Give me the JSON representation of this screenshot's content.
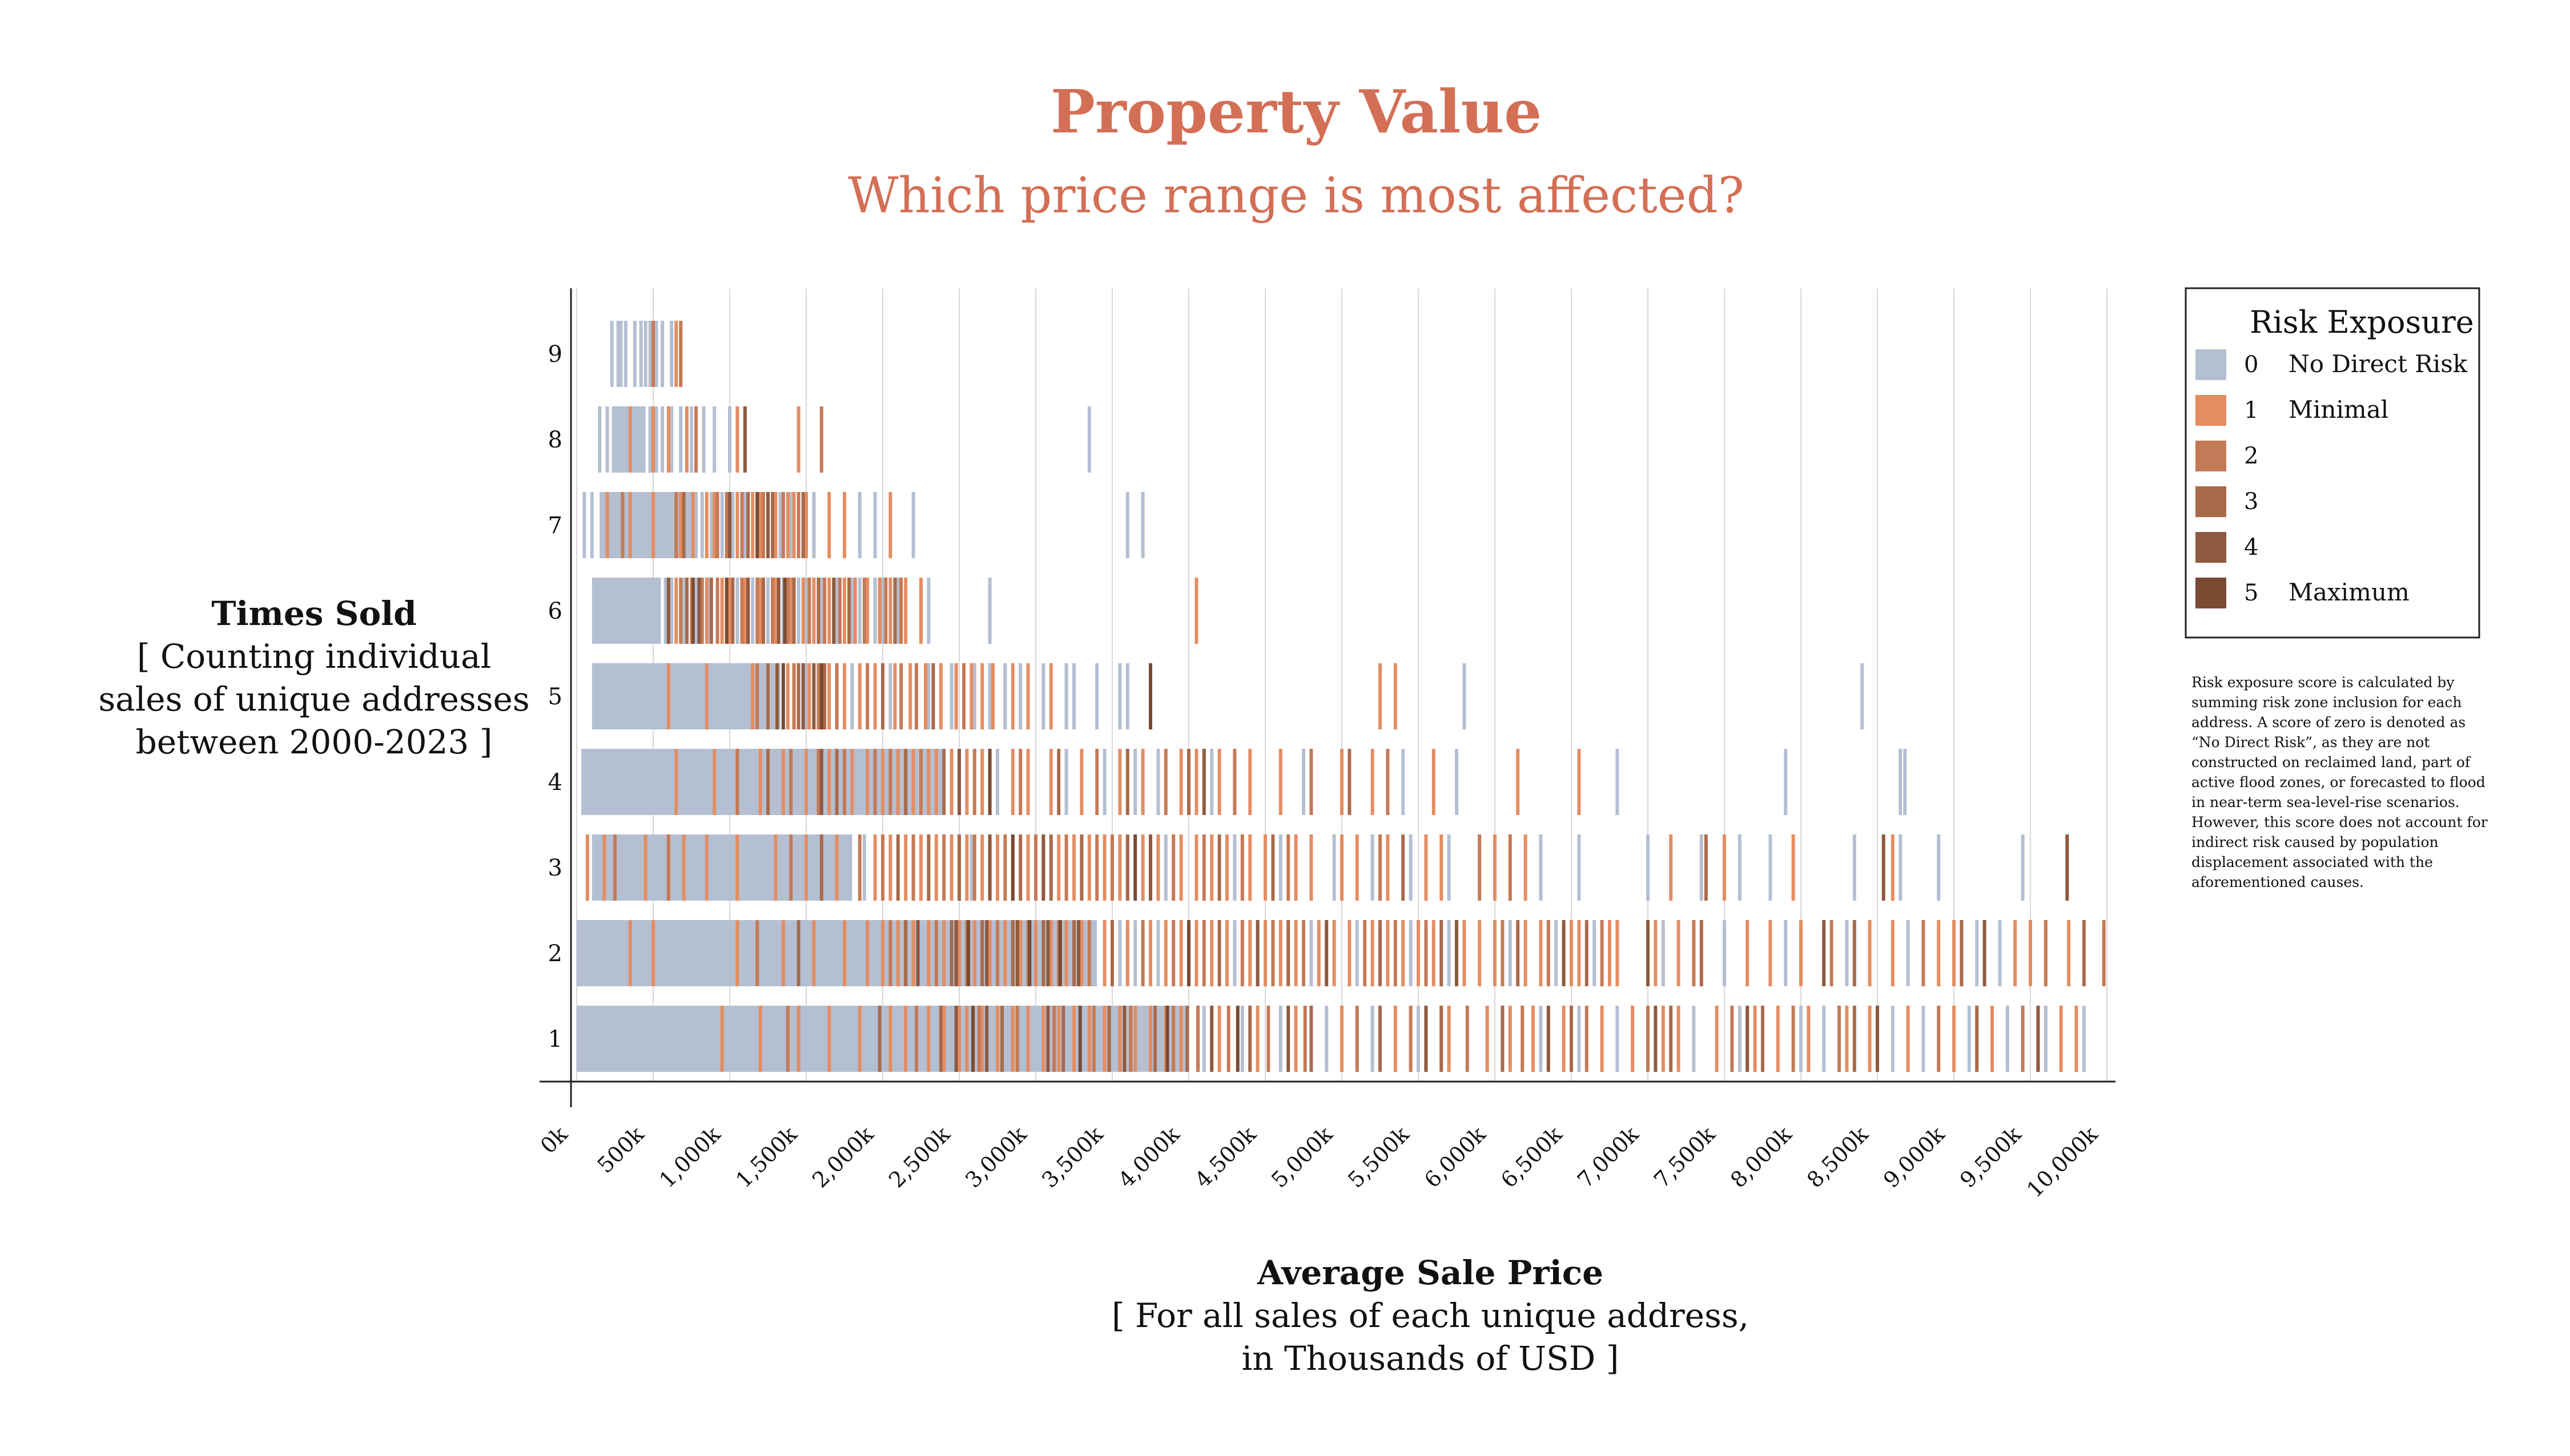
{
  "chart_data": {
    "type": "strip",
    "title": "Property Value",
    "subtitle": "Which price range is most affected?",
    "xlabel": "Average Sale Price",
    "xlabel_sub": [
      "[ For all sales of each unique address,",
      "in Thousands of USD ]"
    ],
    "ylabel": "Times Sold",
    "ylabel_sub": [
      "[ Counting individual",
      "sales of unique addresses",
      "between 2000-2023 ]"
    ],
    "xlim": [
      0,
      10000
    ],
    "x_ticks": [
      {
        "value": 0,
        "label": "0k"
      },
      {
        "value": 500,
        "label": "500k"
      },
      {
        "value": 1000,
        "label": "1,000k"
      },
      {
        "value": 1500,
        "label": "1,500k"
      },
      {
        "value": 2000,
        "label": "2,000k"
      },
      {
        "value": 2500,
        "label": "2,500k"
      },
      {
        "value": 3000,
        "label": "3,000k"
      },
      {
        "value": 3500,
        "label": "3,500k"
      },
      {
        "value": 4000,
        "label": "4,000k"
      },
      {
        "value": 4500,
        "label": "4,500k"
      },
      {
        "value": 5000,
        "label": "5,000k"
      },
      {
        "value": 5500,
        "label": "5,500k"
      },
      {
        "value": 6000,
        "label": "6,000k"
      },
      {
        "value": 6500,
        "label": "6,500k"
      },
      {
        "value": 7000,
        "label": "7,000k"
      },
      {
        "value": 7500,
        "label": "7,500k"
      },
      {
        "value": 8000,
        "label": "8,000k"
      },
      {
        "value": 8500,
        "label": "8,500k"
      },
      {
        "value": 9000,
        "label": "9,000k"
      },
      {
        "value": 9500,
        "label": "9,500k"
      },
      {
        "value": 10000,
        "label": "10,000k"
      }
    ],
    "categories": [
      "1",
      "2",
      "3",
      "4",
      "5",
      "6",
      "7",
      "8",
      "9"
    ],
    "legend": {
      "title": "Risk Exposure",
      "position": "right",
      "items": [
        {
          "score": "0",
          "label": "No Direct Risk",
          "color": "#b4bfd2"
        },
        {
          "score": "1",
          "label": "Minimal",
          "color": "#e48d62"
        },
        {
          "score": "2",
          "label": "",
          "color": "#c47a56"
        },
        {
          "score": "3",
          "label": "",
          "color": "#a96a4a"
        },
        {
          "score": "4",
          "label": "",
          "color": "#8e5a3f"
        },
        {
          "score": "5",
          "label": "Maximum",
          "color": "#7a4a33"
        }
      ]
    },
    "series": [
      {
        "times_sold": "1",
        "dense_zero_range": [
          0,
          4000
        ],
        "values": {
          "0": [
            4100,
            4350,
            4600,
            4900,
            5200,
            5500,
            6300,
            6550,
            6800,
            7300,
            7600,
            8000,
            8150,
            8600,
            8800,
            9100,
            9350,
            9600,
            9850
          ],
          "1": [
            950,
            1200,
            1450,
            1650,
            1850,
            2050,
            2150,
            2300,
            2400,
            2500,
            2550,
            2650,
            2750,
            2850,
            2950,
            3050,
            3150,
            3250,
            3350,
            3450,
            3550,
            3650,
            3750,
            3850,
            3950,
            4200,
            4450,
            4700,
            5000,
            5350,
            5700,
            5950,
            6100,
            6250,
            6450,
            6700,
            6900,
            7100,
            7200,
            7450,
            7700,
            7850,
            8050,
            8300,
            8450,
            8700,
            9000,
            9250,
            9700,
            9800
          ],
          "2": [
            1380,
            2220,
            2630,
            2880,
            3120,
            3380,
            3620,
            3900,
            4060,
            4260,
            4520,
            4760,
            5100,
            5450,
            5820,
            6180,
            6600,
            7000,
            7550,
            7950,
            8250,
            8900,
            9450
          ],
          "3": [
            1980,
            2380,
            2780,
            3180,
            3480,
            3780,
            3990,
            4400,
            4800,
            5250,
            5650,
            6050,
            6500,
            7150,
            7750,
            8350,
            9150
          ],
          "4": [
            2480,
            2680,
            3080,
            3580,
            4150,
            4650,
            5550,
            6350,
            7050,
            7650,
            8500,
            9550
          ],
          "5": [
            2590,
            3290,
            3860,
            4320
          ]
        }
      },
      {
        "times_sold": "2",
        "dense_zero_range": [
          0,
          3400
        ],
        "values": {
          "0": [
            3550,
            3650,
            3800,
            4300,
            4800,
            5100,
            5450,
            5700,
            6100,
            6400,
            6650,
            7100,
            7500,
            7900,
            8300,
            8700,
            9150,
            9300
          ],
          "1": [
            350,
            500,
            1050,
            1350,
            1550,
            1750,
            1900,
            2000,
            2100,
            2200,
            2300,
            2400,
            2500,
            2600,
            2700,
            2800,
            2900,
            3000,
            3100,
            3200,
            3300,
            3450,
            3600,
            3750,
            3850,
            3950,
            4050,
            4150,
            4250,
            4400,
            4500,
            4600,
            4700,
            4850,
            4950,
            5050,
            5200,
            5300,
            5400,
            5500,
            5600,
            5800,
            5900,
            6000,
            6200,
            6300,
            6500,
            6550,
            6750,
            6800,
            7050,
            7200,
            7650,
            7800,
            8000,
            8450,
            8600,
            8900,
            9000,
            9400,
            9500,
            9750
          ],
          "2": [
            1180,
            2050,
            2350,
            2550,
            2750,
            2950,
            3150,
            3350,
            3700,
            3900,
            4100,
            4350,
            4550,
            4750,
            5150,
            5350,
            5550,
            6050,
            6350,
            6700,
            7300,
            8200,
            8800,
            9600,
            9980
          ],
          "3": [
            1450,
            2150,
            2450,
            2650,
            2850,
            3050,
            3250,
            3500,
            4200,
            4650,
            5250,
            5650,
            6150,
            6600,
            7350,
            8350,
            9050,
            9850
          ],
          "4": [
            2230,
            2480,
            2680,
            2880,
            3080,
            3280,
            4450,
            4900,
            5750,
            6450,
            7000,
            8150,
            9200
          ],
          "5": [
            2560,
            2960,
            3160,
            4000
          ]
        }
      },
      {
        "times_sold": "3",
        "dense_zero_range": [
          100,
          1800
        ],
        "values": {
          "0": [
            1880,
            2580,
            3050,
            3600,
            3850,
            4300,
            4600,
            4950,
            5200,
            5450,
            5700,
            6300,
            6550,
            7000,
            7350,
            7600,
            7800,
            8350,
            8900,
            8650,
            9450
          ],
          "1": [
            70,
            180,
            450,
            700,
            850,
            1050,
            1300,
            1500,
            1700,
            1950,
            2050,
            2150,
            2250,
            2350,
            2450,
            2550,
            2650,
            2750,
            2850,
            2950,
            3150,
            3250,
            3350,
            3450,
            3550,
            3700,
            3800,
            3950,
            4050,
            4150,
            4250,
            4400,
            4500,
            4700,
            4800,
            5000,
            5100,
            5300,
            5550,
            5650,
            6000,
            6200,
            7150,
            7500,
            7950,
            8600
          ],
          "2": [
            250,
            600,
            1400,
            1850,
            2000,
            2200,
            2400,
            2600,
            2800,
            3000,
            3200,
            3400,
            3500,
            3900,
            4100,
            4350,
            4650,
            5250,
            5900,
            6100
          ],
          "3": [
            1600,
            2100,
            2300,
            2500,
            2700,
            2900,
            3100,
            3300,
            3600,
            4200,
            4550,
            5400,
            7380
          ],
          "4": [
            2700,
            3050,
            3750,
            8540,
            9740
          ],
          "5": [
            2850,
            3650
          ]
        }
      },
      {
        "times_sold": "4",
        "dense_zero_range": [
          30,
          2400
        ],
        "values": {
          "0": [
            2450,
            2550,
            2750,
            3200,
            3450,
            3650,
            3800,
            4150,
            4750,
            5400,
            5750,
            6800,
            7900,
            8650,
            8680
          ],
          "1": [
            650,
            900,
            1200,
            1350,
            1500,
            1650,
            1800,
            1900,
            2000,
            2100,
            2200,
            2300,
            2350,
            2450,
            2550,
            2650,
            2850,
            2950,
            3100,
            3300,
            3550,
            3700,
            3950,
            4050,
            4200,
            4400,
            4600,
            5000,
            5200,
            5600,
            6150,
            6550
          ],
          "2": [
            1050,
            1400,
            1580,
            1750,
            1950,
            2050,
            2250,
            2600,
            2900,
            3400,
            3850,
            4300,
            4800,
            5300
          ],
          "3": [
            1250,
            1700,
            2150,
            2400,
            3150,
            3600,
            4000,
            5050
          ],
          "4": [
            1600,
            2500,
            4100
          ],
          "5": [
            2700
          ]
        }
      },
      {
        "times_sold": "5",
        "dense_zero_range": [
          100,
          1300
        ],
        "values": {
          "0": [
            1320,
            1450,
            1500,
            1800,
            2000,
            2050,
            2300,
            2450,
            2600,
            2700,
            2800,
            2900,
            3050,
            3200,
            3250,
            3400,
            3550,
            3600,
            5800,
            8400
          ],
          "1": [
            600,
            850,
            1150,
            1380,
            1520,
            1650,
            1750,
            1850,
            1950,
            2080,
            2180,
            2280,
            2380,
            2480,
            2580,
            2650,
            2720,
            2850,
            2950,
            3100,
            5250,
            5350
          ],
          "2": [
            1180,
            1420,
            1580,
            1700,
            1900,
            2120,
            2220,
            2530
          ],
          "3": [
            1250,
            1450,
            1620,
            2000,
            2330
          ],
          "4": [
            1310,
            1480,
            1550
          ],
          "5": [
            1350,
            1600,
            3750
          ]
        }
      },
      {
        "times_sold": "6",
        "dense_zero_range": [
          100,
          550
        ],
        "values": {
          "0": [
            580,
            620,
            700,
            780,
            860,
            950,
            1050,
            1150,
            1250,
            1350,
            1450,
            1500,
            1600,
            1700,
            1800,
            1850,
            1950,
            2000,
            2100,
            2300,
            2700
          ],
          "1": [
            650,
            750,
            850,
            950,
            1000,
            1100,
            1200,
            1300,
            1400,
            1480,
            1550,
            1650,
            1750,
            1820,
            1900,
            1980,
            2050,
            2150,
            2250,
            4050
          ],
          "2": [
            680,
            820,
            920,
            1080,
            1180,
            1280,
            1380,
            1520,
            1620,
            1720,
            1880,
            2020,
            2120
          ],
          "3": [
            720,
            880,
            1020,
            1220,
            1420,
            1580,
            1780,
            2080
          ],
          "4": [
            600,
            800,
            1120,
            1320,
            1680
          ],
          "5": [
            760,
            980,
            1360
          ]
        }
      },
      {
        "times_sold": "7",
        "dense_zero_range": [
          150,
          750
        ],
        "values": {
          "0": [
            50,
            100,
            780,
            820,
            880,
            950,
            1020,
            1100,
            1180,
            1250,
            1330,
            1400,
            1550,
            1850,
            1950,
            2200,
            3600,
            3700
          ],
          "1": [
            200,
            350,
            500,
            680,
            760,
            850,
            900,
            1000,
            1050,
            1150,
            1200,
            1300,
            1380,
            1420,
            1500,
            1650,
            1750,
            2050
          ],
          "2": [
            300,
            650,
            920,
            980,
            1080,
            1220,
            1350,
            1450
          ],
          "3": [
            700,
            1120,
            1280,
            1480
          ],
          "4": [
            1000,
            1250
          ],
          "5": [
            1180
          ]
        }
      },
      {
        "times_sold": "8",
        "dense_zero_range": [
          230,
          450
        ],
        "values": {
          "0": [
            150,
            200,
            280,
            480,
            520,
            560,
            620,
            680,
            750,
            830,
            900,
            1000,
            1100,
            3350
          ],
          "1": [
            350,
            500,
            600,
            720,
            1050,
            1450
          ],
          "2": [
            780,
            1600
          ],
          "3": [],
          "4": [
            1100
          ],
          "5": []
        }
      },
      {
        "times_sold": "9",
        "dense_zero_range": [
          260,
          300
        ],
        "values": {
          "0": [
            230,
            320,
            380,
            420,
            450,
            480,
            520,
            560,
            620
          ],
          "1": [
            650
          ],
          "2": [
            500,
            680
          ],
          "3": [],
          "4": [],
          "5": []
        }
      }
    ],
    "note": "Risk exposure score is calculated by summing risk zone inclusion for each address. A score of zero is denoted as “No Direct Risk”, as they are not constructed on reclaimed land, part of active flood zones, or forecasted to flood in near-term sea-level-rise scenarios. However, this score does not account for indirect risk caused by population displacement associated with the aforementioned causes."
  }
}
